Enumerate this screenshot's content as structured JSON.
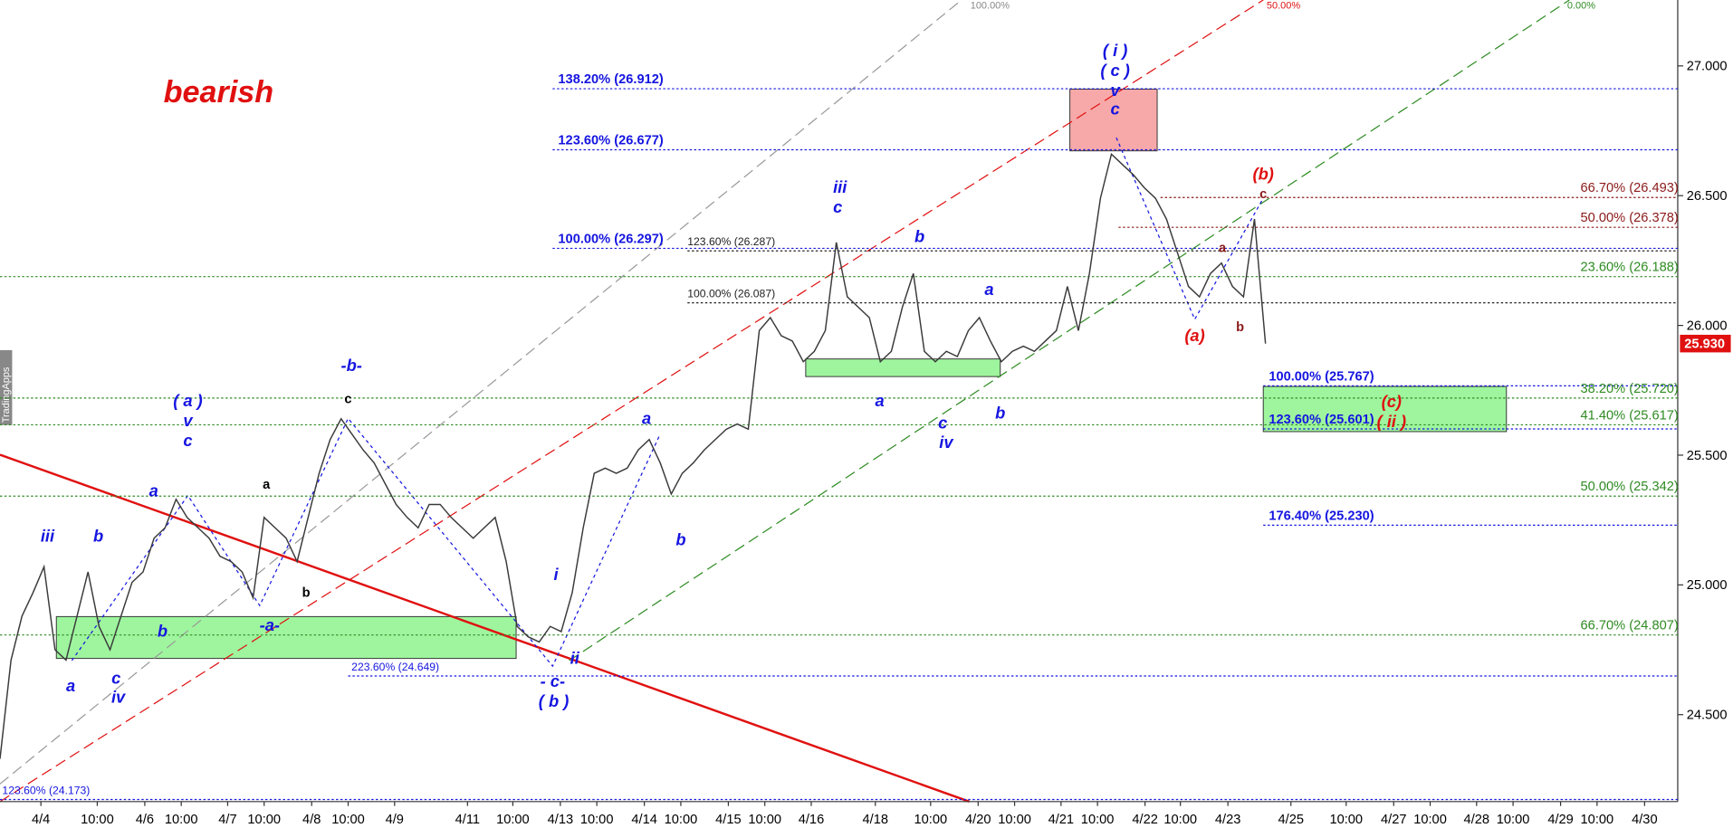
{
  "chart_data": {
    "type": "line",
    "title": "bearish",
    "watermark": "TradingApps",
    "color": "#3a3a3a",
    "values": [
      24.33,
      24.71,
      24.88,
      24.97,
      25.07,
      24.75,
      24.71,
      24.88,
      25.05,
      24.84,
      24.75,
      24.88,
      25.01,
      25.05,
      25.18,
      25.22,
      25.33,
      25.26,
      25.22,
      25.18,
      25.11,
      25.09,
      25.05,
      24.95,
      25.26,
      25.22,
      25.18,
      25.09,
      25.26,
      25.43,
      25.56,
      25.64,
      25.58,
      25.52,
      25.47,
      25.39,
      25.31,
      25.26,
      25.22,
      25.31,
      25.31,
      25.26,
      25.22,
      25.18,
      25.22,
      25.26,
      25.09,
      24.84,
      24.8,
      24.78,
      24.84,
      24.82,
      24.97,
      25.22,
      25.43,
      25.45,
      25.43,
      25.45,
      25.52,
      25.56,
      25.47,
      25.35,
      25.43,
      25.47,
      25.52,
      25.56,
      25.6,
      25.62,
      25.6,
      25.98,
      26.03,
      25.96,
      25.94,
      25.86,
      25.9,
      25.98,
      26.32,
      26.11,
      26.07,
      26.03,
      25.86,
      25.9,
      26.07,
      26.2,
      25.9,
      25.86,
      25.9,
      25.88,
      25.98,
      26.03,
      25.94,
      25.86,
      25.9,
      25.92,
      25.9,
      25.94,
      25.98,
      26.15,
      25.98,
      26.2,
      26.49,
      26.66,
      26.62,
      26.58,
      26.53,
      26.49,
      26.41,
      26.28,
      26.15,
      26.11,
      26.2,
      26.24,
      26.15,
      26.11,
      26.41,
      25.93
    ],
    "x_tick_labels": [
      "4/4",
      "10:00",
      "4/6",
      "10:00",
      "4/7",
      "10:00",
      "4/8",
      "10:00",
      "4/9",
      "4/11",
      "10:00",
      "4/13",
      "10:00",
      "4/14",
      "10:00",
      "4/15",
      "10:00",
      "4/16",
      "4/18",
      "10:00",
      "4/20",
      "10:00",
      "4/21",
      "10:00",
      "4/22",
      "10:00",
      "4/23",
      "4/25",
      "10:00",
      "4/27",
      "10:00",
      "4/28",
      "10:00",
      "4/29",
      "10:00",
      "4/30"
    ],
    "ylim": [
      24.165,
      27.254
    ],
    "yticks": [
      {
        "value": 24.5,
        "label": "24.500"
      },
      {
        "value": 25,
        "label": "25.000"
      },
      {
        "value": 25.5,
        "label": "25.500"
      },
      {
        "value": 26,
        "label": "26.000"
      },
      {
        "value": 26.5,
        "label": "26.500"
      },
      {
        "value": 27,
        "label": "27.000"
      }
    ],
    "last_price": {
      "value": 25.93,
      "label": "25.930"
    },
    "levels": [
      {
        "value": 26.912,
        "label": "138.20% (26.912)",
        "color": "#1515e0"
      },
      {
        "value": 26.677,
        "label": "123.60% (26.677)",
        "color": "#1515e0"
      },
      {
        "value": 26.297,
        "label": "100.00% (26.297)",
        "color": "#1515e0"
      },
      {
        "value": 26.287,
        "label": "123.60% (26.287)",
        "color": "#222222"
      },
      {
        "value": 26.087,
        "label": "100.00% (26.087)",
        "color": "#222222"
      },
      {
        "value": 26.493,
        "label": "66.70% (26.493)",
        "color": "#8b1a1a"
      },
      {
        "value": 26.378,
        "label": "50.00% (26.378)",
        "color": "#8b1a1a"
      },
      {
        "value": 26.188,
        "label": "23.60% (26.188)",
        "color": "#2e8b22"
      },
      {
        "value": 25.767,
        "label": "100.00% (25.767)",
        "color": "#1515e0"
      },
      {
        "value": 25.72,
        "label": "38.20% (25.720)",
        "color": "#2e8b22"
      },
      {
        "value": 25.601,
        "label": "123.60% (25.601)",
        "color": "#1515e0"
      },
      {
        "value": 25.617,
        "label": "41.40% (25.617)",
        "color": "#2e8b22"
      },
      {
        "value": 25.342,
        "label": "50.00% (25.342)",
        "color": "#2e8b22"
      },
      {
        "value": 25.23,
        "label": "176.40% (25.230)",
        "color": "#1515e0"
      },
      {
        "value": 24.807,
        "label": "66.70% (24.807)",
        "color": "#2e8b22"
      },
      {
        "value": 24.649,
        "label": "223.60% (24.649)",
        "color": "#1515e0"
      },
      {
        "value": 24.173,
        "label": "123.60% (24.173)",
        "color": "#1515e0"
      }
    ],
    "channel_labels": [
      "100.00%",
      "50.00%",
      "0.00%"
    ],
    "annotations": [
      "iii",
      "b",
      "b",
      "a",
      "c",
      "iv",
      "a",
      "( a )",
      "v",
      "c",
      "a",
      "b",
      "-a-",
      "-b-",
      "c",
      "i",
      "ii",
      "- c-",
      "( b )",
      "a",
      "b",
      "iii",
      "c",
      "b",
      "a",
      "a",
      "c",
      "iv",
      "b",
      "( i )",
      "( c )",
      "v",
      "c",
      "(b)",
      "c",
      "a",
      "(a)",
      "b",
      "(c)",
      "( ii )"
    ]
  }
}
